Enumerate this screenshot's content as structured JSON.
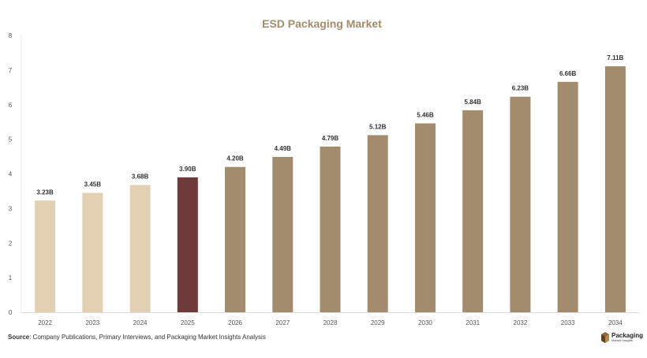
{
  "chart_data": {
    "type": "bar",
    "title": "ESD Packaging Market",
    "categories": [
      "2022",
      "2023",
      "2024",
      "2025",
      "2026",
      "2027",
      "2028",
      "2029",
      "2030",
      "2031",
      "2032",
      "2033",
      "2034"
    ],
    "values": [
      3.23,
      3.45,
      3.68,
      3.9,
      4.2,
      4.49,
      4.79,
      5.12,
      5.46,
      5.84,
      6.23,
      6.66,
      7.11
    ],
    "data_labels": [
      "3.23B",
      "3.45B",
      "3.68B",
      "3.90B",
      "4.20B",
      "4.49B",
      "4.79B",
      "5.12B",
      "5.46B",
      "5.84B",
      "6.23B",
      "6.66B",
      "7.11B"
    ],
    "bar_colors": [
      "#e3d0b3",
      "#e3d0b3",
      "#e3d0b3",
      "#6e3a3a",
      "#a38c6e",
      "#a38c6e",
      "#a38c6e",
      "#a38c6e",
      "#a38c6e",
      "#a38c6e",
      "#a38c6e",
      "#a38c6e",
      "#a38c6e"
    ],
    "yticks": [
      0,
      1,
      2,
      3,
      4,
      5,
      6,
      7,
      8
    ],
    "ylim": [
      0,
      8
    ],
    "grid": false,
    "legend": "none"
  },
  "footer": {
    "source_label": "Source",
    "source_text": ": Company Publications, Primary Interviews, and Packaging Market Insights Analysis",
    "logo_name": "Packaging",
    "logo_sub": "Market Insights"
  },
  "colors": {
    "title": "#a38c6e",
    "history": "#e3d0b3",
    "current": "#6e3a3a",
    "forecast": "#a38c6e"
  }
}
